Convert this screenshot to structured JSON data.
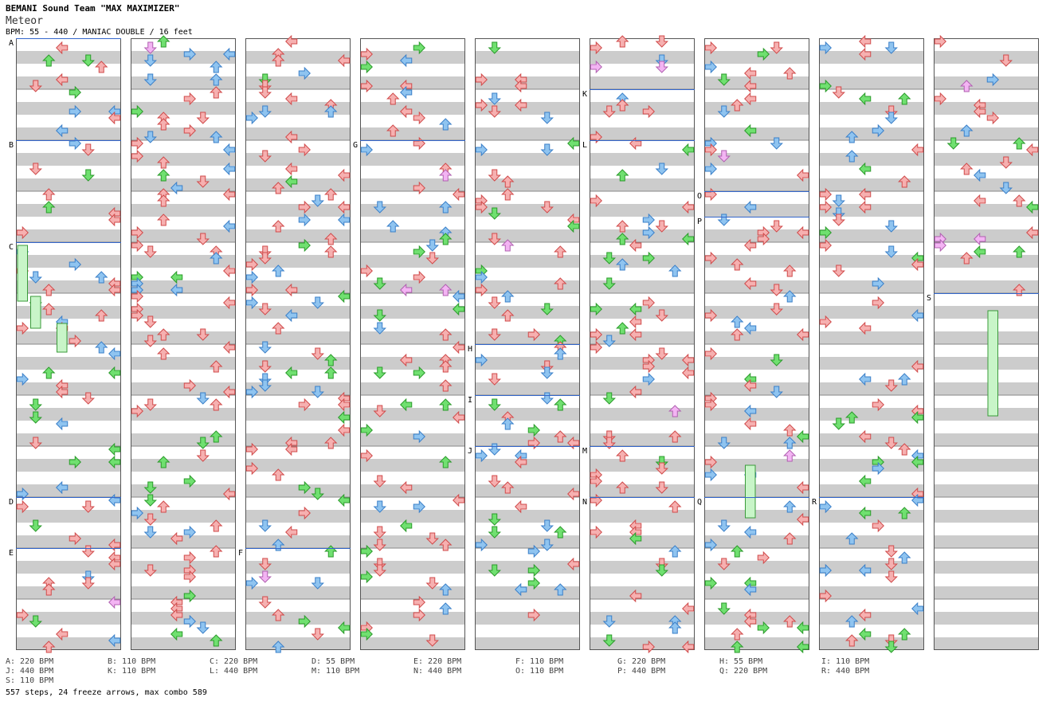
{
  "header": {
    "artist": "BEMANI Sound Team \"MAX MAXIMIZER\"",
    "title": "Meteor",
    "info": "BPM: 55 - 440 / MANIAC DOUBLE / 16 feet"
  },
  "colors": {
    "band_gray": "#cccccc",
    "band_white": "#ffffff",
    "border": "#555555",
    "bpm_line": "#3366cc",
    "arrow_red": "#f6b0b0",
    "arrow_red_stroke": "#d04a4a",
    "arrow_blue": "#8fc4f0",
    "arrow_blue_stroke": "#3a7fc8",
    "arrow_green": "#70e070",
    "arrow_green_stroke": "#2a9a2a",
    "arrow_yellow": "#ffee44",
    "arrow_pink": "#f3b4f3",
    "freeze_fill": "#c8f5c8",
    "freeze_stroke": "#3a9a3a"
  },
  "measure_labels": [
    {
      "label": "A",
      "col": 0,
      "row": 0
    },
    {
      "label": "B",
      "col": 0,
      "row": 2
    },
    {
      "label": "C",
      "col": 0,
      "row": 4
    },
    {
      "label": "D",
      "col": 0,
      "row": 9
    },
    {
      "label": "E",
      "col": 0,
      "row": 10
    },
    {
      "label": "F",
      "col": 2,
      "row": 10
    },
    {
      "label": "G",
      "col": 3,
      "row": 2
    },
    {
      "label": "H",
      "col": 4,
      "row": 6
    },
    {
      "label": "I",
      "col": 4,
      "row": 7
    },
    {
      "label": "J",
      "col": 4,
      "row": 8
    },
    {
      "label": "K",
      "col": 5,
      "row": 1
    },
    {
      "label": "L",
      "col": 5,
      "row": 2
    },
    {
      "label": "M",
      "col": 5,
      "row": 8
    },
    {
      "label": "N",
      "col": 5,
      "row": 9
    },
    {
      "label": "O",
      "col": 6,
      "row": 3
    },
    {
      "label": "P",
      "col": 6,
      "row": 3
    },
    {
      "label": "Q",
      "col": 6,
      "row": 9
    },
    {
      "label": "R",
      "col": 7,
      "row": 9
    },
    {
      "label": "S",
      "col": 8,
      "row": 5
    }
  ],
  "legend": [
    {
      "text": "A: 220 BPM",
      "x": 0,
      "line": 0
    },
    {
      "text": "B: 110 BPM",
      "x": 128,
      "line": 0
    },
    {
      "text": "C: 220 BPM",
      "x": 256,
      "line": 0
    },
    {
      "text": "D: 55 BPM",
      "x": 384,
      "line": 0
    },
    {
      "text": "E: 220 BPM",
      "x": 512,
      "line": 0
    },
    {
      "text": "F: 110 BPM",
      "x": 640,
      "line": 0
    },
    {
      "text": "G: 220 BPM",
      "x": 768,
      "line": 0
    },
    {
      "text": "H: 55 BPM",
      "x": 896,
      "line": 0
    },
    {
      "text": "I: 110 BPM",
      "x": 1024,
      "line": 0
    },
    {
      "text": "J: 440 BPM",
      "x": 0,
      "line": 1
    },
    {
      "text": "K: 110 BPM",
      "x": 128,
      "line": 1
    },
    {
      "text": "L: 440 BPM",
      "x": 256,
      "line": 1
    },
    {
      "text": "M: 110 BPM",
      "x": 384,
      "line": 1
    },
    {
      "text": "N: 440 BPM",
      "x": 512,
      "line": 1
    },
    {
      "text": "O: 110 BPM",
      "x": 640,
      "line": 1
    },
    {
      "text": "P: 440 BPM",
      "x": 768,
      "line": 1
    },
    {
      "text": "Q: 220 BPM",
      "x": 896,
      "line": 1
    },
    {
      "text": "R: 440 BPM",
      "x": 1024,
      "line": 1
    },
    {
      "text": "S: 110 BPM",
      "x": 0,
      "line": 2
    }
  ],
  "summary": "557 steps, 24 freeze arrows, max combo 589"
}
